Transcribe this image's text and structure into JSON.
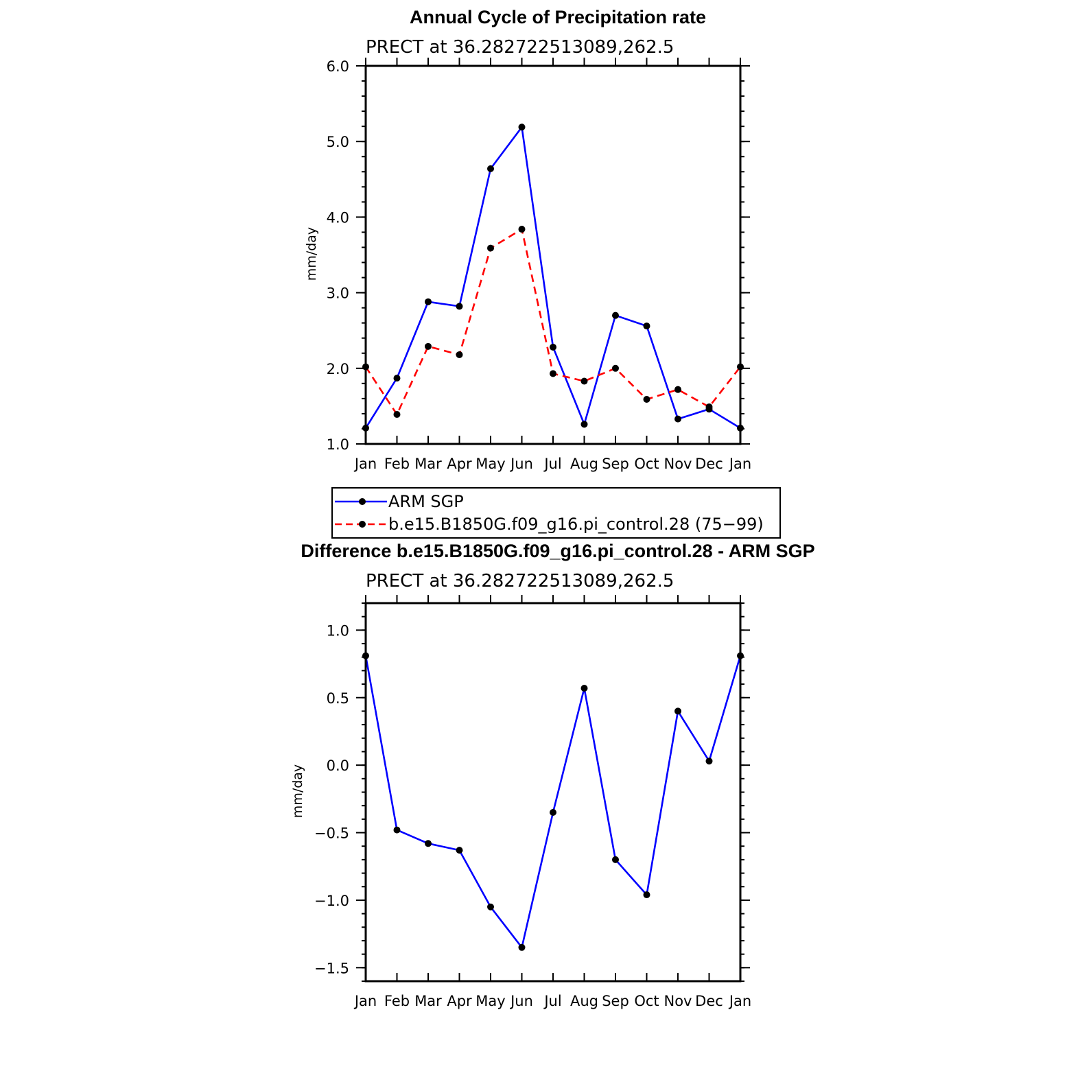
{
  "chart_data": [
    {
      "type": "line",
      "title": "Annual Cycle of Precipitation rate",
      "subtitle": "PRECT at 36.282722513089,262.5",
      "ylabel": "mm/day",
      "xlabel": "",
      "categories": [
        "Jan",
        "Feb",
        "Mar",
        "Apr",
        "May",
        "Jun",
        "Jul",
        "Aug",
        "Sep",
        "Oct",
        "Nov",
        "Dec",
        "Jan"
      ],
      "ylim": [
        1.0,
        6.0
      ],
      "yticks": [
        "1.0",
        "2.0",
        "3.0",
        "4.0",
        "5.0",
        "6.0"
      ],
      "series": [
        {
          "name": "ARM SGP",
          "color": "#0000ff",
          "dash": "solid",
          "values": [
            1.21,
            1.87,
            2.88,
            2.82,
            4.64,
            5.19,
            2.28,
            1.26,
            2.7,
            2.56,
            1.33,
            1.46,
            1.21
          ]
        },
        {
          "name": "b.e15.B1850G.f09_g16.pi_control.28 (75−99)",
          "color": "#ff0000",
          "dash": "dashed",
          "values": [
            2.02,
            1.39,
            2.29,
            2.18,
            3.59,
            3.84,
            1.93,
            1.83,
            2.0,
            1.59,
            1.72,
            1.49,
            2.02
          ]
        }
      ],
      "legend_position": "below"
    },
    {
      "type": "line",
      "title": "Difference b.e15.B1850G.f09_g16.pi_control.28 - ARM SGP",
      "subtitle": "PRECT at 36.282722513089,262.5",
      "ylabel": "mm/day",
      "xlabel": "",
      "categories": [
        "Jan",
        "Feb",
        "Mar",
        "Apr",
        "May",
        "Jun",
        "Jul",
        "Aug",
        "Sep",
        "Oct",
        "Nov",
        "Dec",
        "Jan"
      ],
      "ylim": [
        -1.6,
        1.2
      ],
      "yticks": [
        "−1.5",
        "−1.0",
        "−0.5",
        "0.0",
        "0.5",
        "1.0"
      ],
      "series": [
        {
          "color": "#0000ff",
          "dash": "solid",
          "values": [
            0.81,
            -0.48,
            -0.58,
            -0.63,
            -1.05,
            -1.35,
            -0.35,
            0.57,
            -0.7,
            -0.96,
            0.4,
            0.03,
            0.81
          ]
        }
      ]
    }
  ]
}
